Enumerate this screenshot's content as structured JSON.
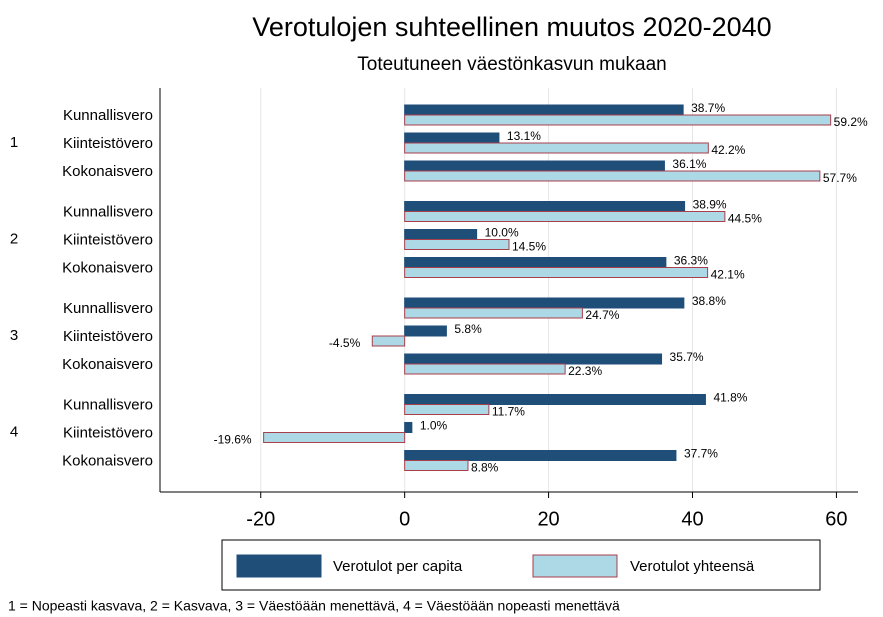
{
  "chart_data": {
    "type": "hbar_grouped",
    "title": "Verotulojen suhteellinen muutos 2020-2040",
    "subtitle": "Toteutuneen väestönkasvun mukaan",
    "group_labels": [
      "1",
      "2",
      "3",
      "4"
    ],
    "categories": [
      "Kunnallisvero",
      "Kiinteistövero",
      "Kokonaisvero",
      "Kunnallisvero",
      "Kiinteistövero",
      "Kokonaisvero",
      "Kunnallisvero",
      "Kiinteistövero",
      "Kokonaisvero",
      "Kunnallisvero",
      "Kiinteistövero",
      "Kokonaisvero"
    ],
    "series": [
      {
        "name": "Verotulot per capita",
        "color": "#1f4e79",
        "border": "#1f4e79",
        "values": [
          38.7,
          13.1,
          36.1,
          38.9,
          10.0,
          36.3,
          38.8,
          5.8,
          35.7,
          41.8,
          1.0,
          37.7
        ],
        "value_labels": [
          "38.7%",
          "13.1%",
          "36.1%",
          "38.9%",
          "10.0%",
          "36.3%",
          "38.8%",
          "5.8%",
          "35.7%",
          "41.8%",
          "1.0%",
          "37.7%"
        ]
      },
      {
        "name": "Verotulot yhteensä",
        "color": "#add8e6",
        "border": "#a8404c",
        "values": [
          59.2,
          42.2,
          57.7,
          44.5,
          14.5,
          42.1,
          24.7,
          -4.5,
          22.3,
          11.7,
          -19.6,
          8.8
        ],
        "value_labels": [
          "59.2%",
          "42.2%",
          "57.7%",
          "44.5%",
          "14.5%",
          "42.1%",
          "24.7%",
          "-4.5%",
          "22.3%",
          "11.7%",
          "-19.6%",
          "8.8%"
        ]
      }
    ],
    "xlim": [
      -34,
      63
    ],
    "xticks": [
      -20,
      0,
      20,
      40,
      60
    ],
    "grid": true,
    "footnote": "1 = Nopeasti kasvava, 2 = Kasvava, 3 = Väestöään menettävä, 4 = Väestöään nopeasti menettävä"
  }
}
